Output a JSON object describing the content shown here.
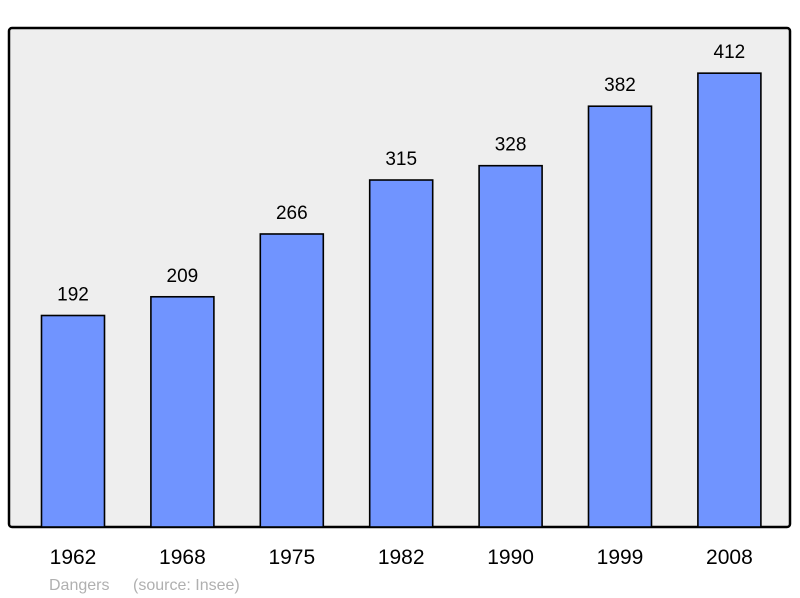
{
  "chart_data": {
    "type": "bar",
    "title": "",
    "xlabel": "",
    "ylabel": "",
    "categories": [
      "1962",
      "1968",
      "1975",
      "1982",
      "1990",
      "1999",
      "2008"
    ],
    "values": [
      192,
      209,
      266,
      315,
      328,
      382,
      412
    ],
    "ylim": [
      0,
      453
    ],
    "grid": false,
    "data_labels": true,
    "colors": {
      "bar": "#7094ff",
      "plot_background": "#eeeeee",
      "outline": "#000000"
    }
  },
  "footer": {
    "place": "Dangers",
    "source": "(source: Insee)"
  }
}
